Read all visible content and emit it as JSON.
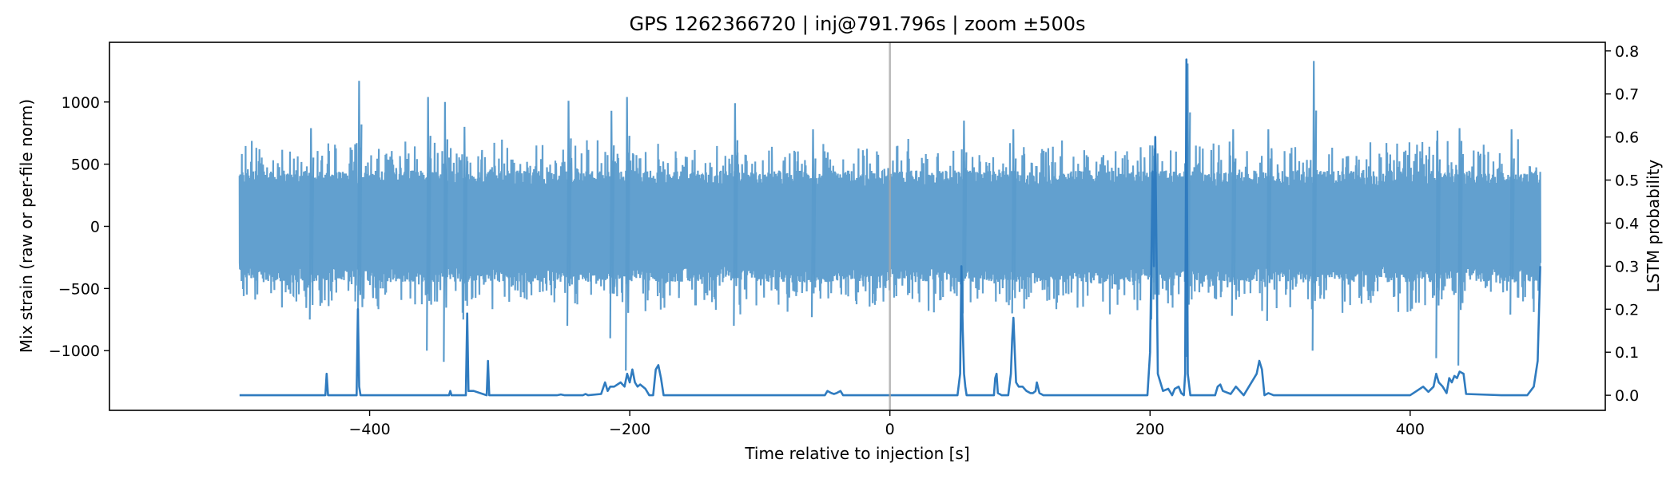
{
  "chart_data": {
    "type": "line",
    "title": "GPS 1262366720 | inj@791.796s | zoom ±500s",
    "xlabel": "Time relative to injection [s]",
    "ylabel_left": "Mix strain (raw or per-file norm)",
    "ylabel_right": "LSTM probability",
    "xlim": [
      -600,
      550
    ],
    "ylim_left": [
      -1480,
      1480
    ],
    "ylim_right": [
      -0.035,
      0.82
    ],
    "x_ticks": [
      -400,
      -200,
      0,
      200,
      400
    ],
    "x_tick_labels": [
      "−400",
      "−200",
      "0",
      "200",
      "400"
    ],
    "y_left_ticks": [
      1000,
      500,
      0,
      -500,
      -1000
    ],
    "y_left_tick_labels": [
      "1000",
      "500",
      "0",
      "−500",
      "−1000"
    ],
    "y_right_ticks": [
      0.8,
      0.7,
      0.6,
      0.5,
      0.4,
      0.3,
      0.2,
      0.1,
      0.0
    ],
    "y_right_tick_labels": [
      "0.8",
      "0.7",
      "0.6",
      "0.5",
      "0.4",
      "0.3",
      "0.2",
      "0.1",
      "0.0"
    ],
    "injection_marker_x": 0,
    "grid": false,
    "colors": {
      "strain": "#5a9bcc",
      "probability": "#2f7bbf",
      "marker": "#a8a8a8"
    },
    "series": [
      {
        "axis": "left",
        "style": "dense-noise",
        "x_range": [
          -500,
          500
        ],
        "typical_envelope": [
          -450,
          450
        ],
        "bursts": [
          {
            "x": -409,
            "max": 1170,
            "min": -920
          },
          {
            "x": -446,
            "max": 790,
            "min": -750
          },
          {
            "x": -356,
            "max": 1040,
            "min": -1000
          },
          {
            "x": -343,
            "max": 1000,
            "min": -1090
          },
          {
            "x": -328,
            "max": 800,
            "min": -750
          },
          {
            "x": -248,
            "max": 1010,
            "min": -800
          },
          {
            "x": -215,
            "max": 930,
            "min": -900
          },
          {
            "x": -203,
            "max": 1040,
            "min": -1160
          },
          {
            "x": -120,
            "max": 990,
            "min": -800
          },
          {
            "x": -60,
            "max": 780,
            "min": -730
          },
          {
            "x": 56,
            "max": 850,
            "min": -700
          },
          {
            "x": 94,
            "max": 780,
            "min": -700
          },
          {
            "x": 201,
            "max": 650,
            "min": -750
          },
          {
            "x": 228,
            "max": 1310,
            "min": -1050
          },
          {
            "x": 263,
            "max": 780,
            "min": -720
          },
          {
            "x": 290,
            "max": 780,
            "min": -760
          },
          {
            "x": 325,
            "max": 1330,
            "min": -1000
          },
          {
            "x": 420,
            "max": 770,
            "min": -1060
          },
          {
            "x": 437,
            "max": 790,
            "min": -1120
          },
          {
            "x": 477,
            "max": 780,
            "min": -710
          }
        ]
      },
      {
        "axis": "right",
        "style": "line",
        "x": [
          -500,
          -434,
          -433,
          -432,
          -431,
          -410,
          -409,
          -408,
          -407,
          -339,
          -338,
          -337,
          -326,
          -325,
          -324,
          -320,
          -310,
          -309,
          -308,
          -307,
          -280,
          -256,
          -253,
          -250,
          -236,
          -234,
          -232,
          -222,
          -219,
          -217,
          -215,
          -212,
          -207,
          -204,
          -202,
          -200,
          -198,
          -196,
          -194,
          -192,
          -190,
          -188,
          -185,
          -182,
          -180,
          -178,
          -176,
          -174,
          -170,
          -50,
          -48,
          -45,
          -43,
          -41,
          -38,
          -36,
          -30,
          52,
          54,
          55,
          56,
          57,
          58,
          59,
          62,
          80,
          81,
          82,
          83,
          86,
          91,
          93,
          94,
          95,
          96,
          97,
          99,
          102,
          105,
          108,
          110,
          112,
          113,
          115,
          118,
          198,
          200,
          202,
          203,
          204,
          206,
          210,
          214,
          217,
          219,
          222,
          224,
          226,
          227,
          228,
          229,
          231,
          234,
          250,
          252,
          254,
          256,
          262,
          266,
          272,
          276,
          280,
          282,
          284,
          286,
          288,
          291,
          295,
          305,
          400,
          405,
          410,
          414,
          418,
          420,
          422,
          425,
          428,
          430,
          432,
          434,
          436,
          438,
          441,
          443,
          470,
          490,
          495,
          498,
          500
        ],
        "y": [
          0.0,
          0.0,
          0.05,
          0.0,
          0.0,
          0.0,
          0.2,
          0.02,
          0.0,
          0.0,
          0.01,
          0.0,
          0.0,
          0.19,
          0.01,
          0.01,
          0.0,
          0.08,
          0.0,
          0.0,
          0.0,
          0.0,
          0.002,
          0.0,
          0.0,
          0.003,
          0.0,
          0.003,
          0.03,
          0.01,
          0.02,
          0.02,
          0.03,
          0.02,
          0.05,
          0.03,
          0.06,
          0.03,
          0.02,
          0.025,
          0.02,
          0.015,
          0.0,
          0.0,
          0.06,
          0.07,
          0.04,
          0.0,
          0.0,
          0.0,
          0.01,
          0.005,
          0.003,
          0.005,
          0.01,
          0.0,
          0.0,
          0.0,
          0.05,
          0.3,
          0.15,
          0.05,
          0.02,
          0.0,
          0.0,
          0.0,
          0.04,
          0.05,
          0.005,
          0.0,
          0.0,
          0.05,
          0.13,
          0.18,
          0.1,
          0.03,
          0.02,
          0.02,
          0.01,
          0.005,
          0.005,
          0.01,
          0.03,
          0.005,
          0.0,
          0.0,
          0.1,
          0.52,
          0.3,
          0.6,
          0.05,
          0.01,
          0.015,
          0.0,
          0.015,
          0.02,
          0.005,
          0.0,
          0.05,
          0.78,
          0.05,
          0.0,
          0.0,
          0.0,
          0.02,
          0.025,
          0.01,
          0.003,
          0.02,
          0.0,
          0.02,
          0.04,
          0.05,
          0.08,
          0.06,
          0.0,
          0.005,
          0.0,
          0.0,
          0.0,
          0.01,
          0.02,
          0.008,
          0.02,
          0.05,
          0.03,
          0.02,
          0.005,
          0.04,
          0.03,
          0.045,
          0.04,
          0.055,
          0.05,
          0.003,
          0.0,
          0.0,
          0.02,
          0.08,
          0.3
        ]
      }
    ]
  }
}
